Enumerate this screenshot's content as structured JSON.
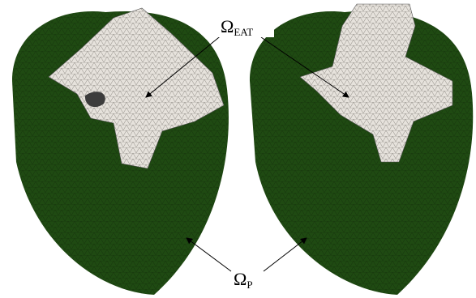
{
  "labels": [
    {
      "symbol": "Ω",
      "subscript": "EAT"
    },
    {
      "symbol": "Ω",
      "subscript": "P"
    }
  ]
}
